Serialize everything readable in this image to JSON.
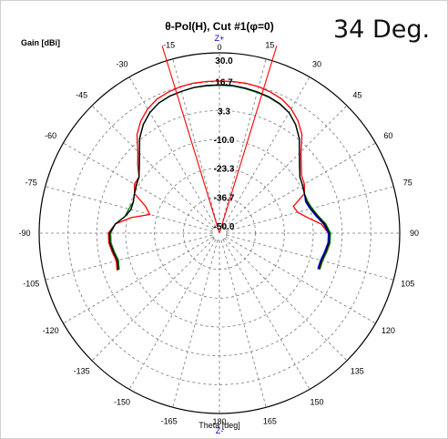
{
  "corner_label": "34 Deg.",
  "chart_data": {
    "type": "polar-line",
    "title": "θ-Pol(H), Cut #1(φ=0)",
    "ylabel": "Gain [dBi]",
    "xlabel": "Theta [deg]",
    "axis_top_label": "Z+",
    "axis_bottom_label": "Z-",
    "r_range": [
      -50,
      30
    ],
    "r_ticks": [
      "30.0",
      "16.7",
      "3.3",
      "-10.0",
      "-23.3",
      "-36.7",
      "-50.0"
    ],
    "angle_ticks": [
      "0",
      "15",
      "30",
      "45",
      "60",
      "75",
      "90",
      "105",
      "120",
      "135",
      "150",
      "165",
      "180",
      "-165",
      "-150",
      "-135",
      "-120",
      "-105",
      "-90",
      "-75",
      "-60",
      "-45",
      "-30",
      "-15"
    ],
    "marker_lines_deg": [
      -17,
      17
    ],
    "marker_color": "#ff0000",
    "grid": true,
    "series": [
      {
        "color": "#ff0000",
        "theta": [
          -110,
          -105,
          -100,
          -95,
          -90,
          -85,
          -80,
          -75,
          -70,
          -65,
          -60,
          -55,
          -50,
          -45,
          -40,
          -35,
          -30,
          -25,
          -20,
          -15,
          -10,
          -5,
          0,
          5,
          10,
          15,
          20,
          25,
          30,
          35,
          40,
          45,
          50,
          55,
          60,
          65,
          70,
          75,
          80,
          85,
          90,
          95,
          100,
          105,
          110
        ],
        "gain": [
          -3,
          -4,
          -3,
          -2,
          -2,
          -5,
          -12,
          -20,
          -17,
          -10,
          -8,
          -8,
          -4,
          0,
          6,
          10,
          13,
          15,
          16,
          16.7,
          17,
          17,
          17,
          17,
          17,
          16.7,
          16,
          15,
          13,
          10,
          6,
          0,
          -4,
          -7,
          -8,
          -10,
          -17,
          -16,
          -12,
          -6,
          -3,
          -2,
          -3,
          -4,
          -4
        ]
      },
      {
        "color": "#0000ff",
        "theta": [
          -110,
          -105,
          -100,
          -95,
          -90,
          -85,
          -80,
          -75,
          -70,
          -65,
          -60,
          -55,
          -50,
          -45,
          -40,
          -35,
          -30,
          -25,
          -20,
          -15,
          -10,
          -5,
          0,
          5,
          10,
          15,
          20,
          25,
          30,
          35,
          40,
          45,
          50,
          55,
          60,
          65,
          70,
          75,
          80,
          85,
          90,
          95,
          100,
          105,
          110
        ],
        "gain": [
          -4,
          -5,
          -4,
          -3,
          -3,
          -5,
          -9,
          -11,
          -11,
          -10,
          -9,
          -8,
          -5,
          -1,
          4,
          8,
          11,
          13,
          14,
          14.5,
          15,
          15,
          15,
          15,
          14.5,
          14,
          13.5,
          12.5,
          11,
          8,
          4,
          -1,
          -5,
          -8,
          -9,
          -10,
          -11,
          -10,
          -8,
          -5,
          -3,
          -3,
          -4,
          -5,
          -5
        ]
      },
      {
        "color": "#008000",
        "theta": [
          -110,
          -105,
          -100,
          -95,
          -90,
          -85,
          -80,
          -75,
          -70,
          -65,
          -60,
          -55,
          -50,
          -45,
          -40,
          -35,
          -30,
          -25,
          -20,
          -15,
          -10,
          -5,
          0,
          5,
          10,
          15,
          20,
          25,
          30,
          35,
          40,
          45,
          50,
          55,
          60,
          65,
          70,
          75,
          80,
          85,
          90,
          95,
          100,
          105,
          110
        ],
        "gain": [
          -4,
          -5,
          -4,
          -3,
          -3,
          -5,
          -9,
          -10,
          -11,
          -10,
          -9,
          -8,
          -5,
          -1,
          4,
          8,
          11,
          13,
          14,
          14.5,
          15,
          15,
          15,
          15,
          14.5,
          14,
          13.5,
          12.5,
          11,
          8,
          4,
          -1,
          -5,
          -8,
          -9,
          -10,
          -10,
          -9,
          -7,
          -4,
          -2,
          -2,
          -3,
          -4,
          -4
        ]
      },
      {
        "color": "#000000",
        "theta": [
          -110,
          -105,
          -100,
          -95,
          -90,
          -85,
          -80,
          -75,
          -70,
          -65,
          -60,
          -55,
          -50,
          -45,
          -40,
          -35,
          -30,
          -25,
          -20,
          -15,
          -10,
          -5,
          0,
          5,
          10,
          15,
          20,
          25,
          30,
          35,
          40,
          45,
          50,
          55,
          60,
          65,
          70,
          75,
          80,
          85,
          90,
          95,
          100,
          105,
          110
        ],
        "gain": [
          -3.5,
          -4.5,
          -3.5,
          -2.5,
          -2.5,
          -5,
          -9,
          -11,
          -11,
          -10,
          -9,
          -8,
          -5,
          -1,
          4,
          8,
          11,
          13,
          14,
          14.5,
          15,
          15.2,
          15.2,
          15.2,
          14.8,
          14.3,
          13.7,
          12.7,
          11,
          8,
          4,
          -1,
          -5,
          -8,
          -9,
          -10,
          -10.5,
          -9.5,
          -7.5,
          -4.5,
          -2.5,
          -2.5,
          -3.5,
          -4.5,
          -4.5
        ]
      }
    ]
  }
}
